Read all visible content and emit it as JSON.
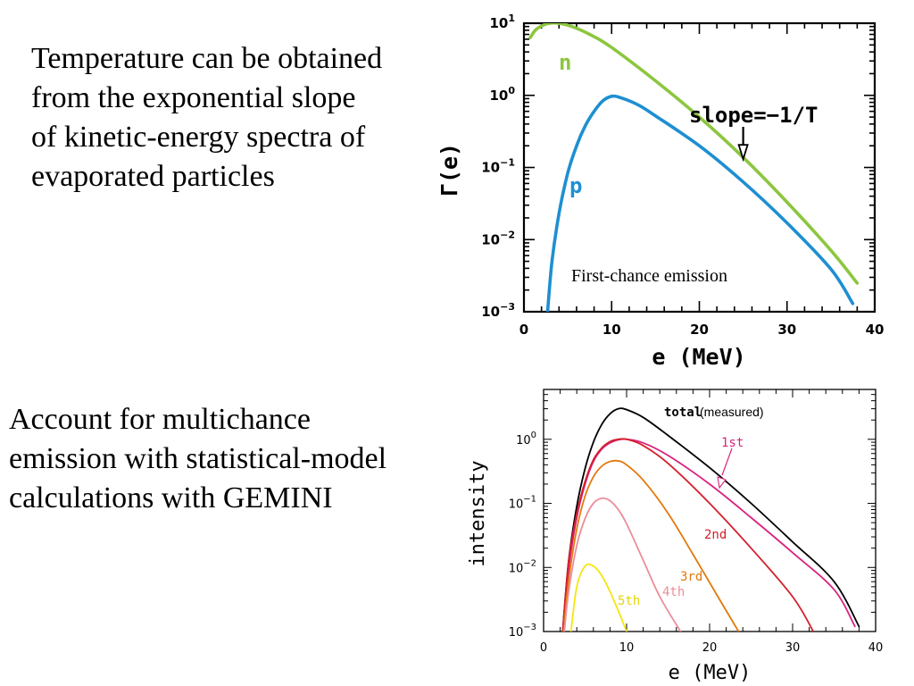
{
  "text": {
    "top_paragraph": [
      "Temperature can be obtained",
      "from the exponential slope",
      "of kinetic-energy spectra of",
      "evaporated particles"
    ],
    "bottom_paragraph": [
      "Account for multichance",
      "emission with statistical-model",
      "calculations with GEMINI"
    ]
  },
  "chart_data": [
    {
      "type": "line",
      "title": "",
      "xlabel": "e (MeV)",
      "ylabel": "Γ(e)",
      "xlim": [
        0,
        40
      ],
      "ylim": [
        0.001,
        10
      ],
      "yscale": "log",
      "x_ticks": [
        0,
        10,
        20,
        30,
        40
      ],
      "y_ticks": [
        {
          "value": 0.001,
          "base": "10",
          "exp": "−3"
        },
        {
          "value": 0.01,
          "base": "10",
          "exp": "−2"
        },
        {
          "value": 0.1,
          "base": "10",
          "exp": "−1"
        },
        {
          "value": 1,
          "base": "10",
          "exp": "0"
        },
        {
          "value": 10,
          "base": "10",
          "exp": "1"
        }
      ],
      "series": [
        {
          "name": "n",
          "color": "#8cc63f",
          "x": [
            0.7,
            1.5,
            3,
            5,
            7.5,
            10,
            15,
            20,
            25,
            30,
            35,
            38
          ],
          "y": [
            6.3,
            8.4,
            10.0,
            9.4,
            7.0,
            4.6,
            1.59,
            0.5,
            0.138,
            0.033,
            0.0071,
            0.0025
          ]
        },
        {
          "name": "p",
          "color": "#1e8fd1",
          "x": [
            2.7,
            3.2,
            4,
            5,
            6,
            7,
            8,
            9,
            10,
            11,
            13,
            15,
            20,
            25,
            30,
            35,
            37.5
          ],
          "y": [
            0.001,
            0.005,
            0.023,
            0.084,
            0.2,
            0.38,
            0.6,
            0.84,
            0.97,
            0.93,
            0.74,
            0.52,
            0.2,
            0.063,
            0.017,
            0.0039,
            0.0013
          ]
        }
      ],
      "annotations": [
        {
          "text": "slope=−1/T",
          "arrow_to": {
            "x": 25,
            "y": 0.138
          }
        },
        {
          "text": "First-chance emission"
        }
      ]
    },
    {
      "type": "line",
      "title": "",
      "xlabel": "e (MeV)",
      "ylabel": "intensity",
      "xlim": [
        0,
        40
      ],
      "ylim": [
        0.001,
        6
      ],
      "yscale": "log",
      "x_ticks": [
        0,
        10,
        20,
        30,
        40
      ],
      "y_ticks": [
        {
          "value": 0.001,
          "base": "10",
          "exp": "−3"
        },
        {
          "value": 0.01,
          "base": "10",
          "exp": "−2"
        },
        {
          "value": 0.1,
          "base": "10",
          "exp": "−1"
        },
        {
          "value": 1,
          "base": "10",
          "exp": "0"
        }
      ],
      "series": [
        {
          "name": "total",
          "color": "#000000",
          "x": [
            2.3,
            3,
            4,
            5,
            6,
            7,
            8,
            9,
            10,
            12,
            15,
            20,
            25,
            30,
            35,
            38
          ],
          "y": [
            0.001,
            0.012,
            0.09,
            0.35,
            0.9,
            1.7,
            2.5,
            3.0,
            2.9,
            2.2,
            1.15,
            0.36,
            0.1,
            0.025,
            0.006,
            0.0012
          ]
        },
        {
          "name": "1st",
          "color": "#d9237f",
          "x": [
            2.3,
            3,
            4,
            5,
            6,
            7,
            8,
            9,
            10,
            12,
            15,
            20,
            25,
            30,
            35,
            37.5
          ],
          "y": [
            0.001,
            0.009,
            0.06,
            0.2,
            0.45,
            0.7,
            0.88,
            0.98,
            1.0,
            0.88,
            0.56,
            0.2,
            0.06,
            0.017,
            0.0045,
            0.0012
          ]
        },
        {
          "name": "2nd",
          "color": "#d4202c",
          "x": [
            2.3,
            3,
            4,
            5,
            6,
            7,
            8,
            9,
            10,
            12,
            15,
            20,
            25,
            30,
            32.5
          ],
          "y": [
            0.001,
            0.012,
            0.07,
            0.22,
            0.48,
            0.73,
            0.92,
            1.0,
            1.0,
            0.8,
            0.42,
            0.1,
            0.02,
            0.0035,
            0.001
          ]
        },
        {
          "name": "3rd",
          "color": "#e2790d",
          "x": [
            2.4,
            3,
            4,
            5,
            6,
            7,
            8,
            9,
            10,
            12,
            15,
            18,
            21,
            23.5
          ],
          "y": [
            0.001,
            0.006,
            0.04,
            0.13,
            0.26,
            0.38,
            0.45,
            0.46,
            0.4,
            0.23,
            0.07,
            0.016,
            0.0035,
            0.001
          ]
        },
        {
          "name": "4th",
          "color": "#eb8e98",
          "x": [
            2.5,
            3,
            4,
            5,
            6,
            7,
            8,
            9,
            10,
            12,
            14,
            16.5
          ],
          "y": [
            0.001,
            0.004,
            0.022,
            0.058,
            0.1,
            0.12,
            0.11,
            0.08,
            0.048,
            0.013,
            0.0035,
            0.001
          ]
        },
        {
          "name": "5th",
          "color": "#f5e60f",
          "x": [
            3.3,
            4,
            5,
            6,
            7,
            8,
            9,
            10
          ],
          "y": [
            0.001,
            0.005,
            0.0105,
            0.0105,
            0.0075,
            0.0042,
            0.0021,
            0.001
          ]
        }
      ],
      "labels": {
        "total": "total",
        "measured": "(measured)",
        "first": "1st",
        "second": "2nd",
        "third": "3rd",
        "fourth": "4th",
        "fifth": "5th"
      }
    }
  ]
}
